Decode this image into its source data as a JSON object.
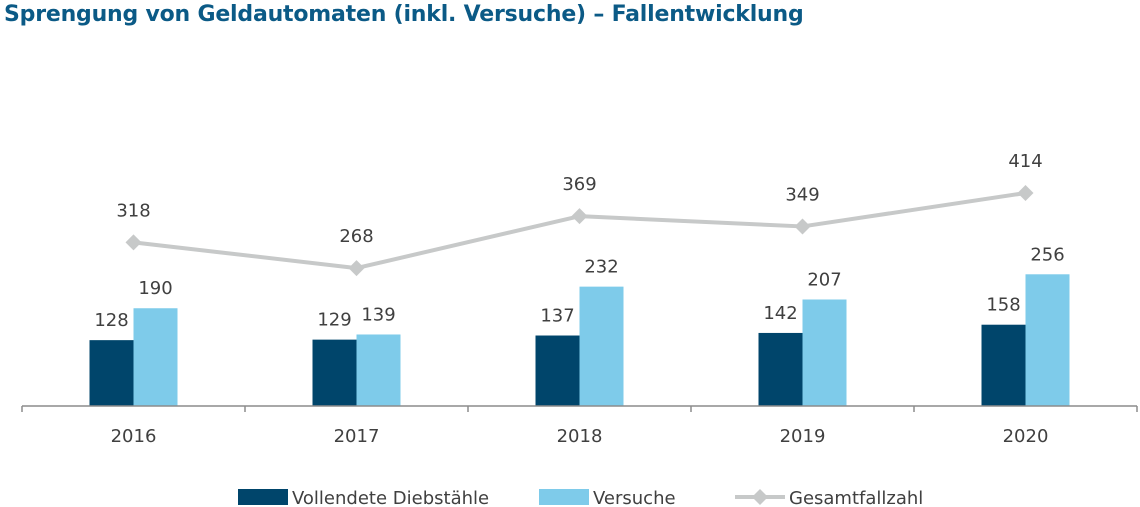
{
  "title": "Sprengung von Geldautomaten (inkl. Versuche) – Fallentwicklung",
  "colors": {
    "title": "#0b5a86",
    "vollendete": "#00456b",
    "versuche": "#7ecbea",
    "gesamt": "#c7c9c9",
    "axis": "#8c8c8c",
    "text": "#404040"
  },
  "chart_data": {
    "type": "bar",
    "categories": [
      "2016",
      "2017",
      "2018",
      "2019",
      "2020"
    ],
    "series": [
      {
        "name": "Vollendete Diebstähle",
        "kind": "bar",
        "values": [
          128,
          129,
          137,
          142,
          158
        ]
      },
      {
        "name": "Versuche",
        "kind": "bar",
        "values": [
          190,
          139,
          232,
          207,
          256
        ]
      },
      {
        "name": "Gesamtfallzahl",
        "kind": "line",
        "marker": "diamond",
        "values": [
          318,
          268,
          369,
          349,
          414
        ]
      }
    ],
    "title": "Sprengung von Geldautomaten (inkl. Versuche) – Fallentwicklung",
    "xlabel": "",
    "ylabel": "",
    "ylim": [
      0,
      450
    ],
    "grid": false,
    "data_labels": true,
    "legend": "bottom"
  }
}
